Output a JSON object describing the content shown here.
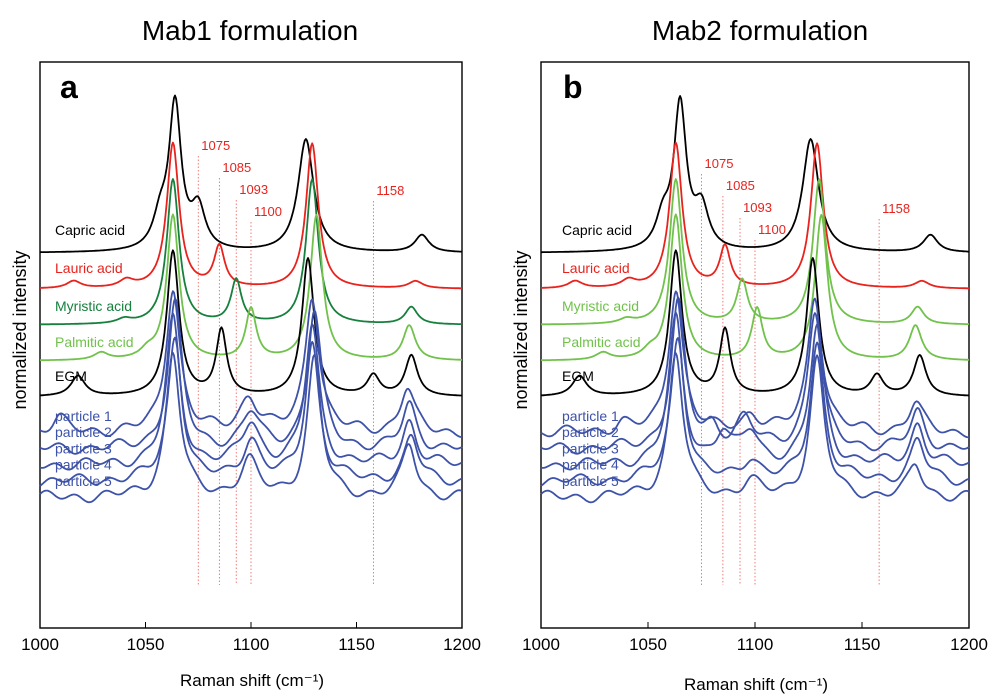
{
  "chart_data": [
    {
      "type": "line",
      "title": "Mab1 formulation",
      "panel_label": "a",
      "xlabel": "Raman shift (cm⁻¹)",
      "ylabel": "normalized intensity",
      "xlim": [
        1000,
        1200
      ],
      "x_ticks": [
        "1000",
        "1050",
        "1100",
        "1150",
        "1200"
      ],
      "reference_lines": [
        {
          "label": "1075",
          "x": 1075
        },
        {
          "label": "1085",
          "x": 1085
        },
        {
          "label": "1093",
          "x": 1093
        },
        {
          "label": "1100",
          "x": 1100
        },
        {
          "label": "1158",
          "x": 1158
        }
      ],
      "series": [
        {
          "name": "Capric acid",
          "color": "#000000",
          "offset": 0.0,
          "peaks": [
            [
              1064,
              1.0,
              3.5
            ],
            [
              1057,
              0.2,
              4
            ],
            [
              1075,
              0.28,
              4
            ],
            [
              1126,
              0.78,
              4.5
            ],
            [
              1181,
              0.12,
              4
            ]
          ]
        },
        {
          "name": "Lauric acid",
          "color": "#e8231e",
          "offset": 1.0,
          "peaks": [
            [
              1063,
              1.0,
              3.5
            ],
            [
              1016,
              0.05,
              4
            ],
            [
              1041,
              0.05,
              4
            ],
            [
              1085,
              0.28,
              3
            ],
            [
              1129,
              1.0,
              3.5
            ],
            [
              1178,
              0.05,
              4
            ]
          ]
        },
        {
          "name": "Myristic acid",
          "color": "#17803d",
          "offset": 2.0,
          "peaks": [
            [
              1063,
              1.0,
              3.5
            ],
            [
              1040,
              0.03,
              4
            ],
            [
              1093,
              0.3,
              3
            ],
            [
              1129,
              1.0,
              3.5
            ],
            [
              1176,
              0.12,
              3.5
            ]
          ]
        },
        {
          "name": "Palmitic acid",
          "color": "#70c24b",
          "offset": 3.0,
          "peaks": [
            [
              1063,
              1.0,
              3.5
            ],
            [
              1029,
              0.05,
              4
            ],
            [
              1051,
              0.05,
              4
            ],
            [
              1100,
              0.35,
              3
            ],
            [
              1131,
              1.0,
              3.5
            ],
            [
              1175,
              0.24,
              3.5
            ]
          ]
        },
        {
          "name": "EGM",
          "color": "#000000",
          "offset": 4.0,
          "peaks": [
            [
              1063,
              1.0,
              3.5
            ],
            [
              1018,
              0.14,
              4
            ],
            [
              1086,
              0.45,
              3
            ],
            [
              1127,
              0.95,
              3.5
            ],
            [
              1158,
              0.14,
              3.5
            ],
            [
              1176,
              0.28,
              3.5
            ]
          ]
        },
        {
          "name": "particle 1",
          "color": "#3d52a8",
          "offset": 5.0,
          "peaks": [
            [
              1063,
              1.0,
              4
            ],
            [
              1009,
              0.1,
              4
            ],
            [
              1099,
              0.24,
              5
            ],
            [
              1129,
              0.95,
              4
            ],
            [
              1174,
              0.3,
              4
            ]
          ]
        },
        {
          "name": "particle 2",
          "color": "#3d52a8",
          "offset": 5.45,
          "peaks": [
            [
              1064,
              1.0,
              4
            ],
            [
              1100,
              0.24,
              5
            ],
            [
              1130,
              0.95,
              4
            ],
            [
              1175,
              0.3,
              4
            ]
          ]
        },
        {
          "name": "particle 3",
          "color": "#3d52a8",
          "offset": 5.9,
          "peaks": [
            [
              1063,
              1.0,
              4
            ],
            [
              1100,
              0.28,
              5
            ],
            [
              1129,
              0.95,
              4
            ],
            [
              1175,
              0.3,
              4
            ]
          ]
        },
        {
          "name": "particle 4",
          "color": "#3d52a8",
          "offset": 6.35,
          "peaks": [
            [
              1064,
              1.0,
              4
            ],
            [
              1100,
              0.28,
              5
            ],
            [
              1129,
              0.95,
              4
            ],
            [
              1176,
              0.3,
              4
            ]
          ]
        },
        {
          "name": "particle 5",
          "color": "#3d52a8",
          "offset": 6.8,
          "peaks": [
            [
              1063,
              1.0,
              4
            ],
            [
              1099,
              0.24,
              5
            ],
            [
              1130,
              0.95,
              4
            ],
            [
              1175,
              0.36,
              4
            ]
          ]
        }
      ]
    },
    {
      "type": "line",
      "title": "Mab2 formulation",
      "panel_label": "b",
      "xlabel": "Raman shift (cm⁻¹)",
      "ylabel": "normalized intensity",
      "xlim": [
        1000,
        1200
      ],
      "x_ticks": [
        "1000",
        "1050",
        "1100",
        "1150",
        "1200"
      ],
      "reference_lines": [
        {
          "label": "1075",
          "x": 1075
        },
        {
          "label": "1085",
          "x": 1085
        },
        {
          "label": "1093",
          "x": 1093
        },
        {
          "label": "1100",
          "x": 1100
        },
        {
          "label": "1158",
          "x": 1158
        }
      ],
      "series": [
        {
          "name": "Capric acid",
          "color": "#000000",
          "offset": 0.0,
          "peaks": [
            [
              1065,
              1.0,
              3.5
            ],
            [
              1057,
              0.2,
              4
            ],
            [
              1075,
              0.28,
              4
            ],
            [
              1126,
              0.78,
              4.5
            ],
            [
              1182,
              0.12,
              4
            ]
          ]
        },
        {
          "name": "Lauric acid",
          "color": "#e8231e",
          "offset": 1.0,
          "peaks": [
            [
              1063,
              1.0,
              3.5
            ],
            [
              1016,
              0.05,
              4
            ],
            [
              1041,
              0.05,
              4
            ],
            [
              1086,
              0.28,
              3
            ],
            [
              1129,
              1.0,
              3.5
            ],
            [
              1178,
              0.05,
              4
            ]
          ]
        },
        {
          "name": "Myristic acid",
          "color": "#70c24b",
          "offset": 2.0,
          "peaks": [
            [
              1063,
              1.0,
              3.5
            ],
            [
              1040,
              0.03,
              4
            ],
            [
              1094,
              0.3,
              3
            ],
            [
              1130,
              1.0,
              3.5
            ],
            [
              1176,
              0.12,
              3.5
            ]
          ]
        },
        {
          "name": "Palmitic acid",
          "color": "#70c24b",
          "offset": 3.0,
          "peaks": [
            [
              1063,
              1.0,
              3.5
            ],
            [
              1029,
              0.05,
              4
            ],
            [
              1051,
              0.05,
              4
            ],
            [
              1101,
              0.35,
              3
            ],
            [
              1131,
              1.0,
              3.5
            ],
            [
              1175,
              0.24,
              3.5
            ]
          ]
        },
        {
          "name": "EGM",
          "color": "#000000",
          "offset": 4.0,
          "peaks": [
            [
              1063,
              1.0,
              3.5
            ],
            [
              1018,
              0.14,
              4
            ],
            [
              1086,
              0.45,
              3
            ],
            [
              1127,
              0.95,
              3.5
            ],
            [
              1157,
              0.14,
              3.5
            ],
            [
              1177,
              0.28,
              3.5
            ]
          ]
        },
        {
          "name": "particle 1",
          "color": "#3d52a8",
          "offset": 5.0,
          "peaks": [
            [
              1063,
              1.0,
              4
            ],
            [
              1038,
              0.06,
              4
            ],
            [
              1098,
              0.12,
              5
            ],
            [
              1128,
              0.95,
              4
            ],
            [
              1175,
              0.2,
              4
            ]
          ]
        },
        {
          "name": "particle 2",
          "color": "#3d52a8",
          "offset": 5.45,
          "peaks": [
            [
              1064,
              1.0,
              4
            ],
            [
              1080,
              0.12,
              4
            ],
            [
              1095,
              0.2,
              5
            ],
            [
              1128,
              0.95,
              4
            ],
            [
              1176,
              0.25,
              4
            ]
          ]
        },
        {
          "name": "particle 3",
          "color": "#3d52a8",
          "offset": 5.9,
          "peaks": [
            [
              1063,
              1.0,
              4
            ],
            [
              1085,
              0.2,
              4
            ],
            [
              1098,
              0.22,
              5
            ],
            [
              1129,
              0.95,
              4
            ],
            [
              1176,
              0.28,
              4
            ]
          ]
        },
        {
          "name": "particle 4",
          "color": "#3d52a8",
          "offset": 6.35,
          "peaks": [
            [
              1064,
              1.0,
              4
            ],
            [
              1098,
              0.15,
              5
            ],
            [
              1129,
              0.95,
              4
            ],
            [
              1176,
              0.28,
              4
            ]
          ]
        },
        {
          "name": "particle 5",
          "color": "#3d52a8",
          "offset": 6.8,
          "peaks": [
            [
              1063,
              1.0,
              4
            ],
            [
              1098,
              0.1,
              5
            ],
            [
              1129,
              0.95,
              4
            ],
            [
              1175,
              0.22,
              4
            ]
          ]
        }
      ]
    }
  ]
}
